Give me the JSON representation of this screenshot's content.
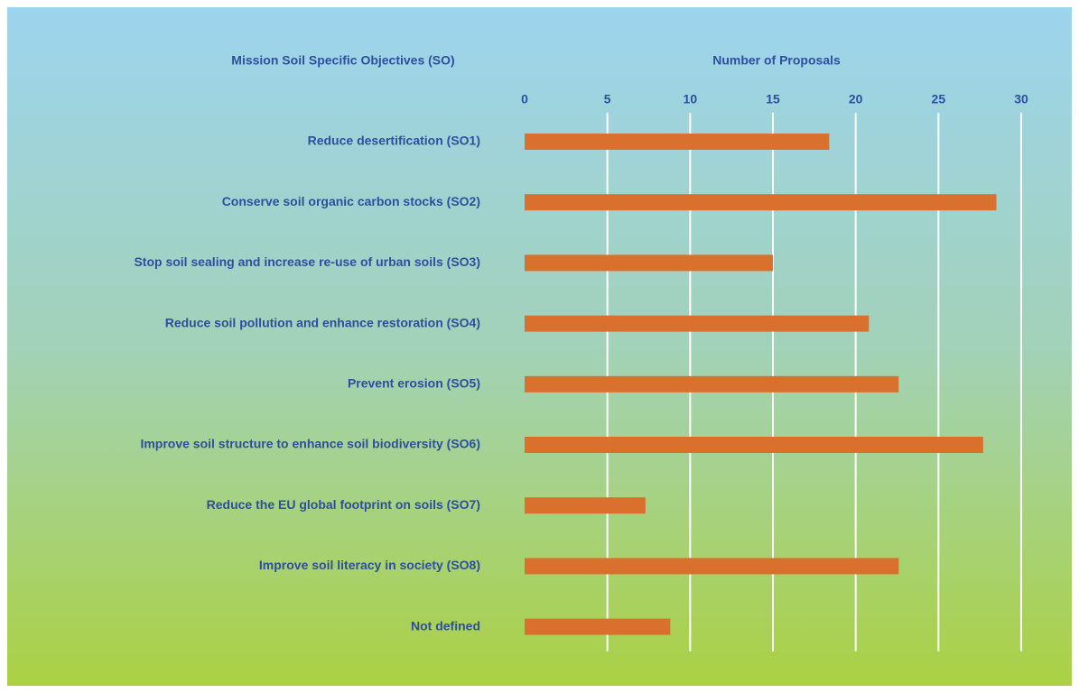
{
  "chart_data": {
    "type": "hbar",
    "category_axis_label": "Mission Soil Specific Objectives (SO)",
    "value_axis_label": "Number of Proposals",
    "categories": [
      "Reduce desertification (SO1)",
      "Conserve soil organic carbon stocks (SO2)",
      "Stop soil sealing and increase re-use of urban soils (SO3)",
      "Reduce soil pollution and enhance restoration (SO4)",
      "Prevent erosion (SO5)",
      "Improve soil structure to enhance soil biodiversity (SO6)",
      "Reduce the EU global footprint on soils (SO7)",
      "Improve soil literacy in society (SO8)",
      "Not defined"
    ],
    "values": [
      18.4,
      28.5,
      15,
      20.8,
      22.6,
      27.7,
      7.3,
      22.6,
      8.8
    ],
    "color": "#d9702d",
    "xlim": [
      0,
      30
    ],
    "xticks": [
      0,
      5,
      10,
      15,
      20,
      25,
      30
    ],
    "grid": true
  }
}
